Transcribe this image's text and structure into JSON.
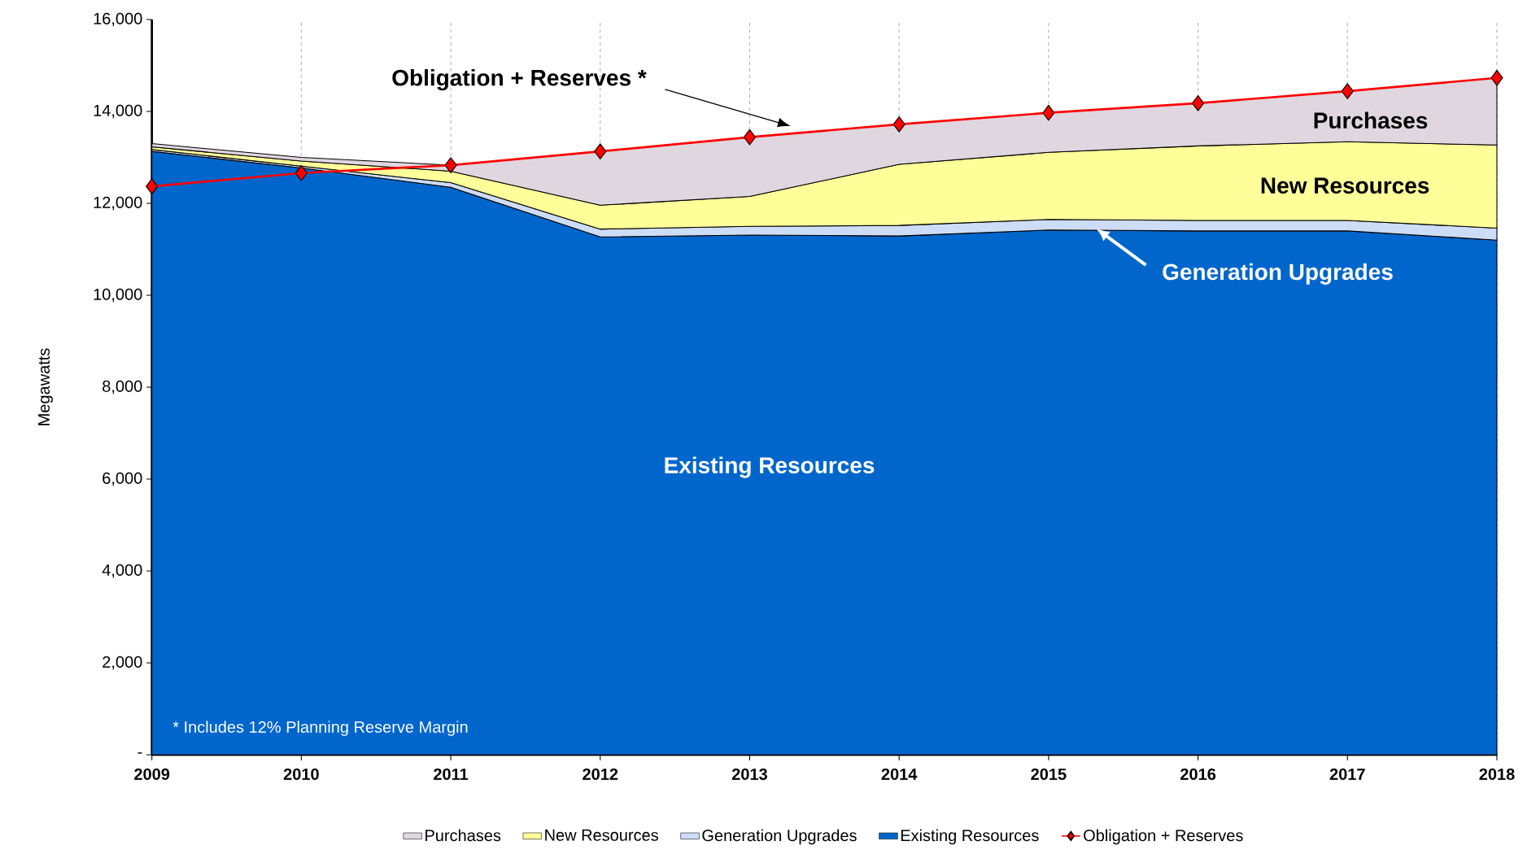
{
  "chart_data": {
    "type": "area",
    "stacked": true,
    "ylabel": "Megawatts",
    "categories": [
      "2009",
      "2010",
      "2011",
      "2012",
      "2013",
      "2014",
      "2015",
      "2016",
      "2017",
      "2018"
    ],
    "series": [
      {
        "name": "Existing Resources",
        "color": "#0066cc",
        "values": [
          13130,
          12770,
          12350,
          11270,
          11310,
          11290,
          11420,
          11400,
          11400,
          11200
        ]
      },
      {
        "name": "Generation Upgrades",
        "color": "#cddcf7",
        "values": [
          40,
          40,
          100,
          170,
          190,
          230,
          230,
          230,
          230,
          260
        ]
      },
      {
        "name": "New Resources",
        "color": "#ffff99",
        "values": [
          60,
          110,
          250,
          520,
          650,
          1330,
          1460,
          1620,
          1710,
          1810
        ]
      },
      {
        "name": "Purchases",
        "color": "#e0d6df",
        "values": [
          70,
          80,
          130,
          1170,
          1290,
          870,
          860,
          930,
          1100,
          1460
        ]
      },
      {
        "name": "Obligation + Reserves",
        "type": "line",
        "color": "#ff0000",
        "marker": "diamond",
        "values": [
          12370,
          12660,
          12830,
          13130,
          13440,
          13720,
          13970,
          14180,
          14440,
          14730
        ]
      }
    ],
    "ylim": [
      0,
      16000
    ],
    "yticks": [
      {
        "value": 0,
        "label": "-"
      },
      {
        "value": 2000,
        "label": "2,000"
      },
      {
        "value": 4000,
        "label": "4,000"
      },
      {
        "value": 6000,
        "label": "6,000"
      },
      {
        "value": 8000,
        "label": "8,000"
      },
      {
        "value": 10000,
        "label": "10,000"
      },
      {
        "value": 12000,
        "label": "12,000"
      },
      {
        "value": 14000,
        "label": "14,000"
      },
      {
        "value": 16000,
        "label": "16,000"
      }
    ],
    "grid": "x",
    "legend": "bottom",
    "annotations": [
      "Obligation + Reserves *",
      "Purchases",
      "New Resources",
      {
        "text": "Generation Upgrades",
        "y": 11450
      },
      "Existing Resources",
      "* Includes 12% Planning Reserve Margin"
    ]
  }
}
